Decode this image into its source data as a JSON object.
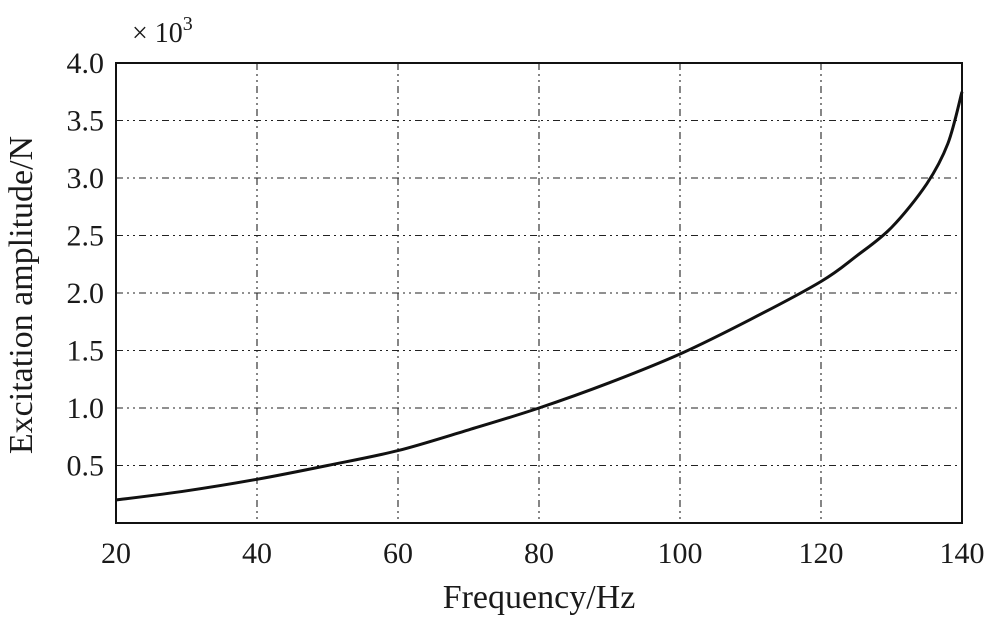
{
  "chart_data": {
    "type": "line",
    "xlabel": "Frequency/Hz",
    "ylabel": "Excitation amplitude/N",
    "y_multiplier": "× 10",
    "y_multiplier_exp": "3",
    "xlim": [
      20,
      140
    ],
    "ylim": [
      0,
      4.0
    ],
    "xticks": [
      20,
      40,
      60,
      80,
      100,
      120,
      140
    ],
    "xtick_labels": [
      "20",
      "40",
      "60",
      "80",
      "100",
      "120",
      "140"
    ],
    "yticks": [
      0.5,
      1.0,
      1.5,
      2.0,
      2.5,
      3.0,
      3.5,
      4.0
    ],
    "ytick_labels": [
      "0.5",
      "1.0",
      "1.5",
      "2.0",
      "2.5",
      "3.0",
      "3.5",
      "4.0"
    ],
    "grid": true,
    "series": [
      {
        "x": [
          20,
          30,
          40,
          50,
          60,
          70,
          80,
          90,
          100,
          110,
          120,
          125,
          130,
          135,
          138,
          140
        ],
        "y": [
          0.2,
          0.28,
          0.38,
          0.5,
          0.63,
          0.81,
          1.0,
          1.22,
          1.47,
          1.77,
          2.1,
          2.32,
          2.57,
          2.95,
          3.3,
          3.75
        ]
      }
    ]
  }
}
